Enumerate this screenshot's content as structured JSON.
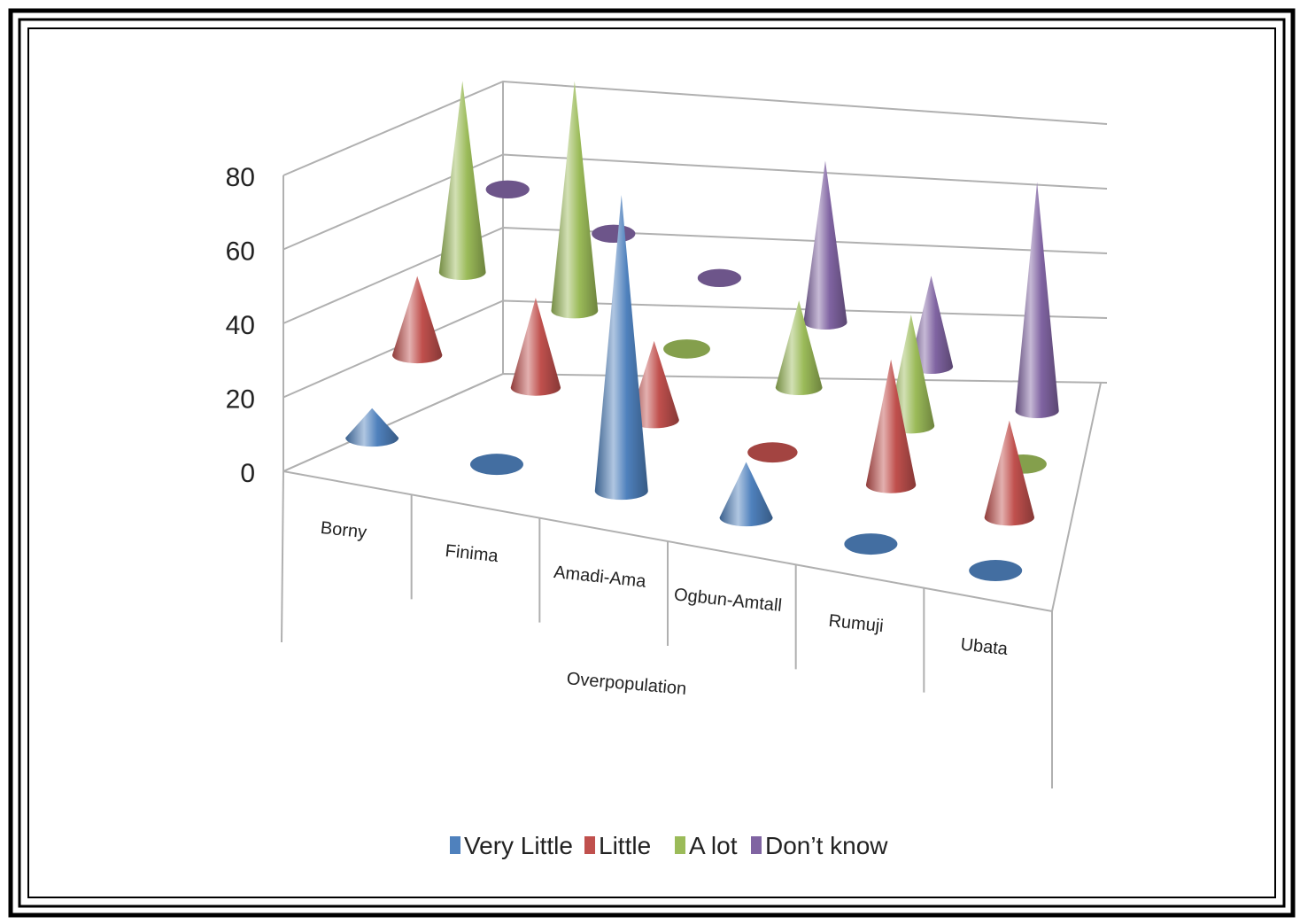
{
  "chart_data": {
    "type": "bar",
    "subtype": "3d-cone",
    "title": "",
    "xlabel": "Overpopulation",
    "ylabel": "",
    "ylim": [
      0,
      80
    ],
    "y_ticks": [
      "0",
      "20",
      "40",
      "60",
      "80"
    ],
    "grid": true,
    "legend_position": "bottom",
    "categories": [
      "Borny",
      "Finima",
      "Amadi-Ama",
      "Ogbun-Amtall",
      "Rumuji",
      "Ubata"
    ],
    "series": [
      {
        "name": "Very Little",
        "color": "#4F81BD",
        "values": [
          8,
          0,
          80,
          15,
          0,
          0
        ]
      },
      {
        "name": "Little",
        "color": "#C0504D",
        "values": [
          22,
          25,
          22,
          0,
          35,
          27
        ]
      },
      {
        "name": "A lot",
        "color": "#9BBB59",
        "values": [
          55,
          66,
          0,
          25,
          32,
          0
        ]
      },
      {
        "name": "Don’t know",
        "color": "#8064A2",
        "values": [
          0,
          0,
          0,
          48,
          27,
          68
        ]
      }
    ]
  }
}
